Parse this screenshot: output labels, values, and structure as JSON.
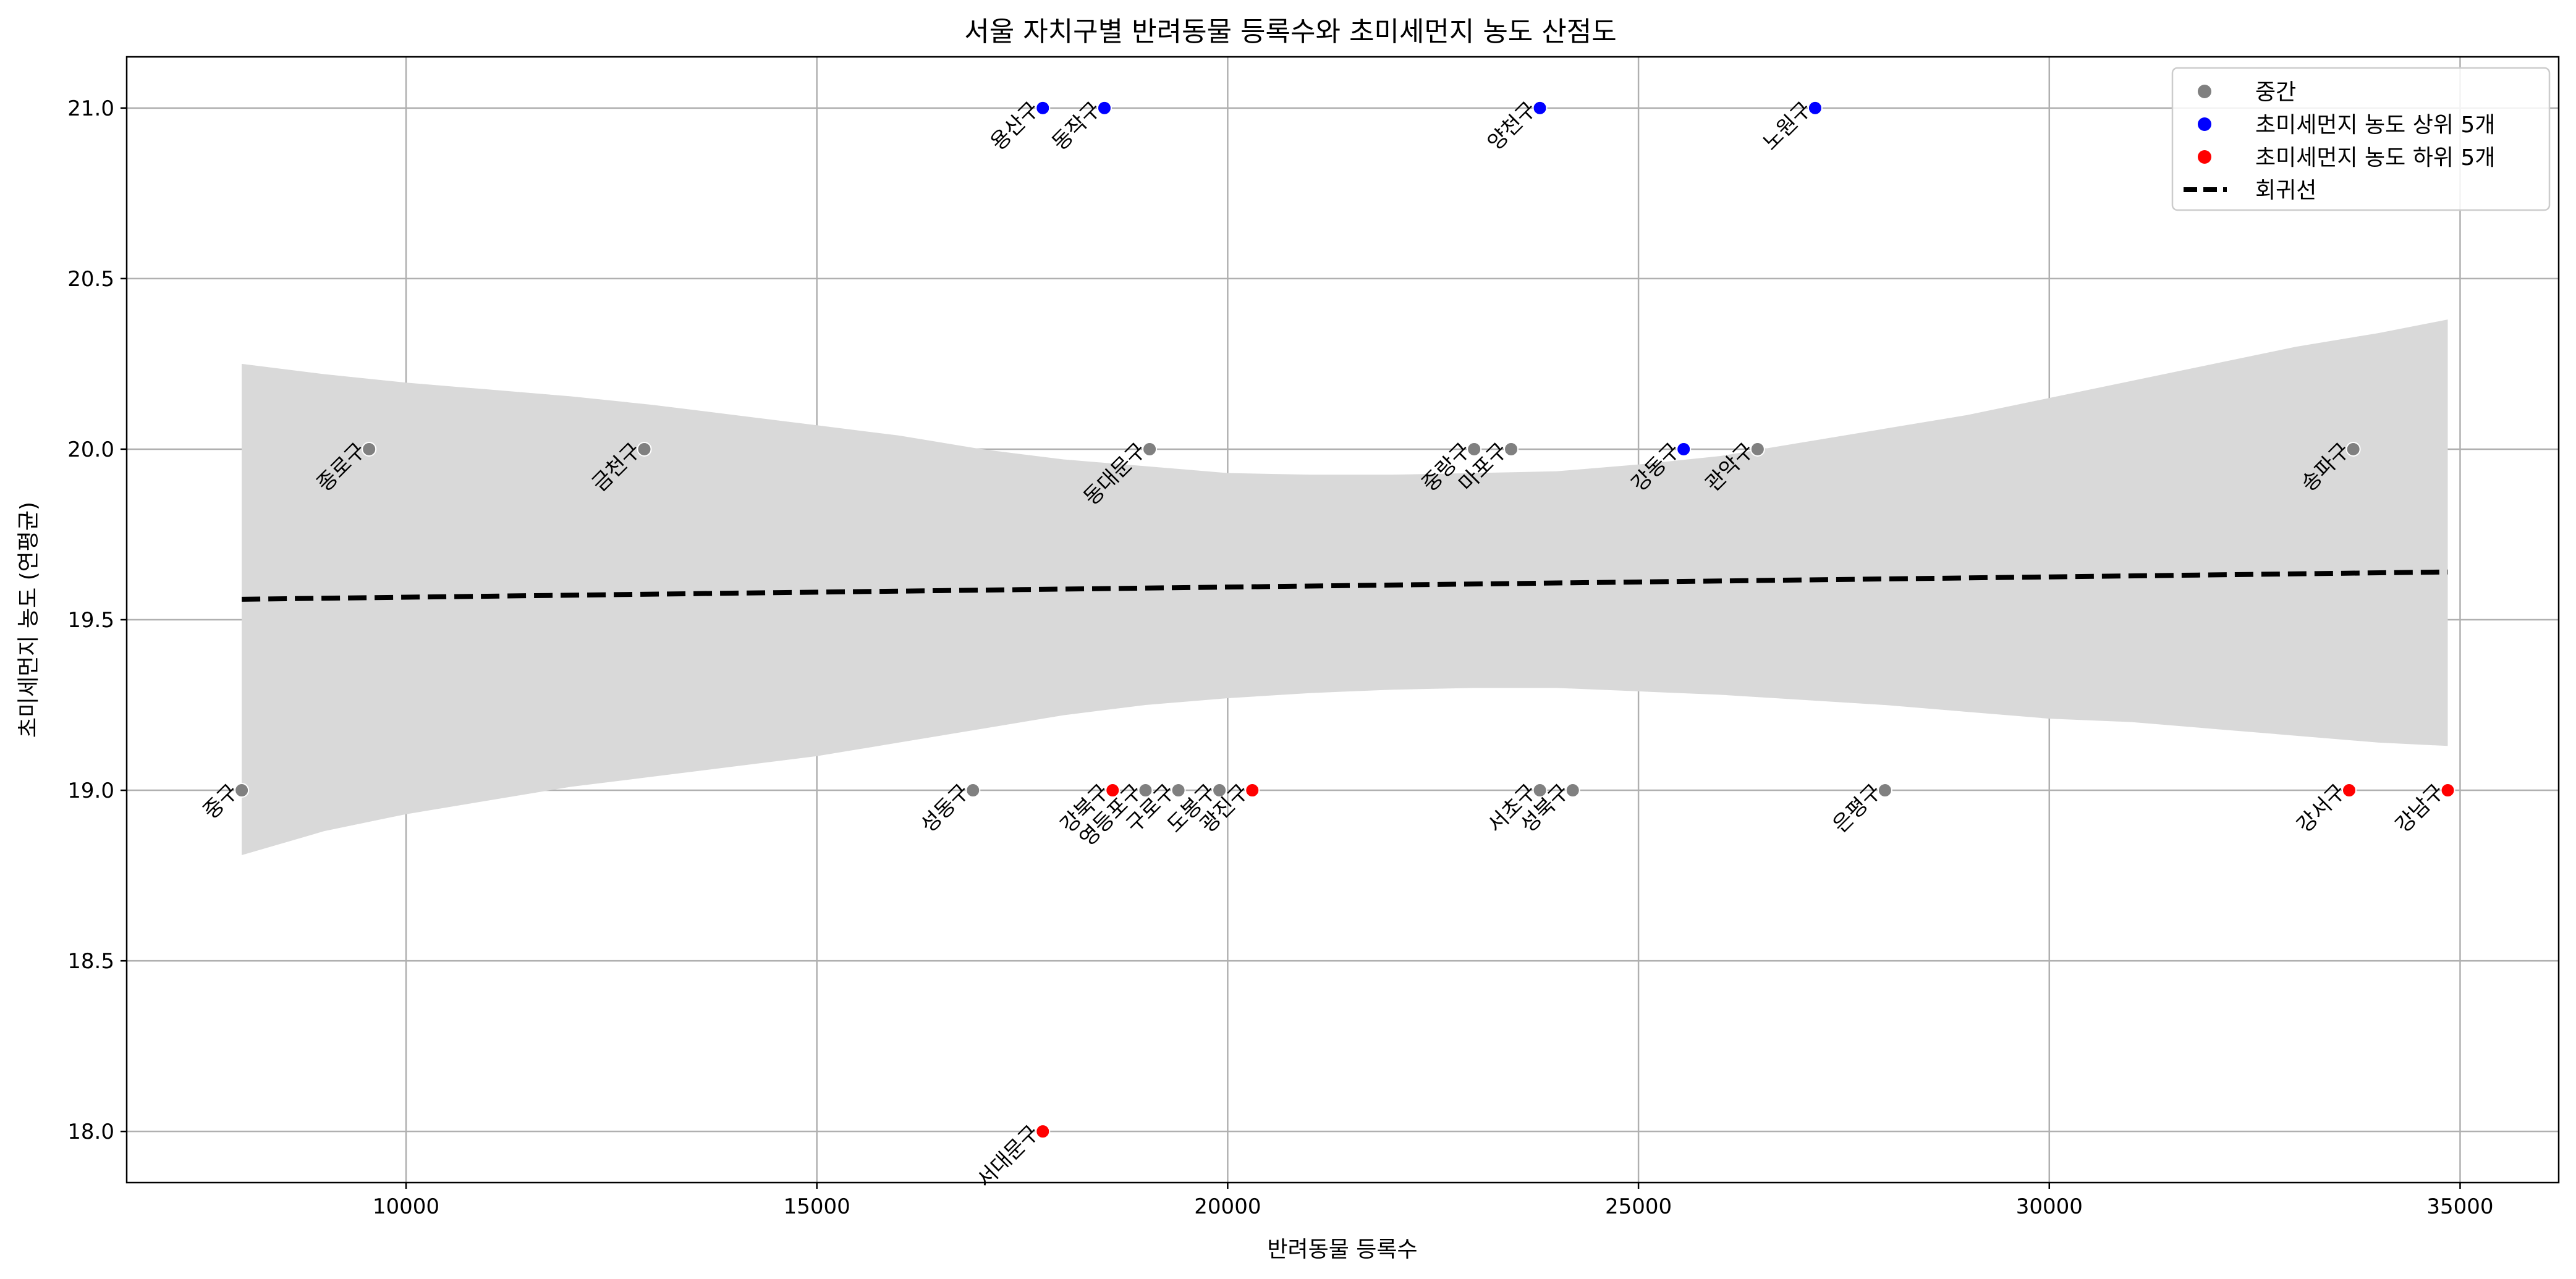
{
  "chart_data": {
    "type": "scatter",
    "title": "서울 자치구별 반려동물 등록수와 초미세먼지 농도 산점도",
    "xlabel": "반려동물 등록수",
    "ylabel": "초미세먼지 농도 (연평균)",
    "xlim": [
      6600,
      36200
    ],
    "ylim": [
      17.85,
      21.15
    ],
    "xticks": [
      10000,
      15000,
      20000,
      25000,
      30000,
      35000
    ],
    "yticks": [
      18.0,
      18.5,
      19.0,
      19.5,
      20.0,
      20.5,
      21.0
    ],
    "grid": true,
    "legend_position": "top-right",
    "legend": [
      {
        "label": "중간",
        "kind": "marker",
        "color": "#808080"
      },
      {
        "label": "초미세먼지 농도 상위 5개",
        "kind": "marker",
        "color": "#0000ff"
      },
      {
        "label": "초미세먼지 농도 하위 5개",
        "kind": "marker",
        "color": "#ff0000"
      },
      {
        "label": "회귀선",
        "kind": "dashed-line",
        "color": "#000000"
      }
    ],
    "series": [
      {
        "name": "중간",
        "color": "#808080",
        "points": [
          {
            "label": "중구",
            "x": 8000,
            "y": 19.0
          },
          {
            "label": "종로구",
            "x": 9550,
            "y": 20.0
          },
          {
            "label": "금천구",
            "x": 12900,
            "y": 20.0
          },
          {
            "label": "성동구",
            "x": 16900,
            "y": 19.0
          },
          {
            "label": "동대문구",
            "x": 19050,
            "y": 20.0
          },
          {
            "label": "영등포구",
            "x": 19000,
            "y": 19.0
          },
          {
            "label": "구로구",
            "x": 19400,
            "y": 19.0
          },
          {
            "label": "도봉구",
            "x": 19900,
            "y": 19.0
          },
          {
            "label": "중랑구",
            "x": 23000,
            "y": 20.0
          },
          {
            "label": "마포구",
            "x": 23450,
            "y": 20.0
          },
          {
            "label": "서초구",
            "x": 23800,
            "y": 19.0
          },
          {
            "label": "성북구",
            "x": 24200,
            "y": 19.0
          },
          {
            "label": "관악구",
            "x": 26450,
            "y": 20.0
          },
          {
            "label": "은평구",
            "x": 28000,
            "y": 19.0
          },
          {
            "label": "송파구",
            "x": 33700,
            "y": 20.0
          }
        ]
      },
      {
        "name": "초미세먼지 농도 상위 5개",
        "color": "#0000ff",
        "points": [
          {
            "label": "용산구",
            "x": 17750,
            "y": 21.0
          },
          {
            "label": "동작구",
            "x": 18500,
            "y": 21.0
          },
          {
            "label": "양천구",
            "x": 23800,
            "y": 21.0
          },
          {
            "label": "노원구",
            "x": 27150,
            "y": 21.0
          },
          {
            "label": "강동구",
            "x": 25550,
            "y": 20.0
          }
        ]
      },
      {
        "name": "초미세먼지 농도 하위 5개",
        "color": "#ff0000",
        "points": [
          {
            "label": "서대문구",
            "x": 17750,
            "y": 18.0
          },
          {
            "label": "강북구",
            "x": 18600,
            "y": 19.0
          },
          {
            "label": "광진구",
            "x": 20300,
            "y": 19.0
          },
          {
            "label": "강서구",
            "x": 33650,
            "y": 19.0
          },
          {
            "label": "강남구",
            "x": 34850,
            "y": 19.0
          }
        ]
      }
    ],
    "regression": {
      "x": [
        8000,
        34850
      ],
      "y": [
        19.56,
        19.64
      ],
      "ci_band": {
        "x": [
          8000,
          9000,
          10000,
          11000,
          12000,
          13000,
          14000,
          15000,
          16000,
          17000,
          18000,
          19000,
          20000,
          21000,
          22000,
          23000,
          24000,
          25000,
          26000,
          27000,
          28000,
          29000,
          30000,
          31000,
          32000,
          33000,
          34000,
          34850
        ],
        "upper": [
          20.25,
          20.22,
          20.195,
          20.175,
          20.155,
          20.13,
          20.1,
          20.07,
          20.04,
          20.0,
          19.97,
          19.95,
          19.93,
          19.925,
          19.925,
          19.93,
          19.935,
          19.955,
          19.98,
          20.02,
          20.06,
          20.1,
          20.15,
          20.2,
          20.25,
          20.3,
          20.34,
          20.38
        ],
        "lower": [
          18.81,
          18.88,
          18.93,
          18.97,
          19.01,
          19.04,
          19.07,
          19.1,
          19.14,
          19.18,
          19.22,
          19.25,
          19.27,
          19.285,
          19.295,
          19.3,
          19.3,
          19.29,
          19.28,
          19.265,
          19.25,
          19.23,
          19.21,
          19.2,
          19.18,
          19.16,
          19.14,
          19.13
        ]
      }
    }
  }
}
